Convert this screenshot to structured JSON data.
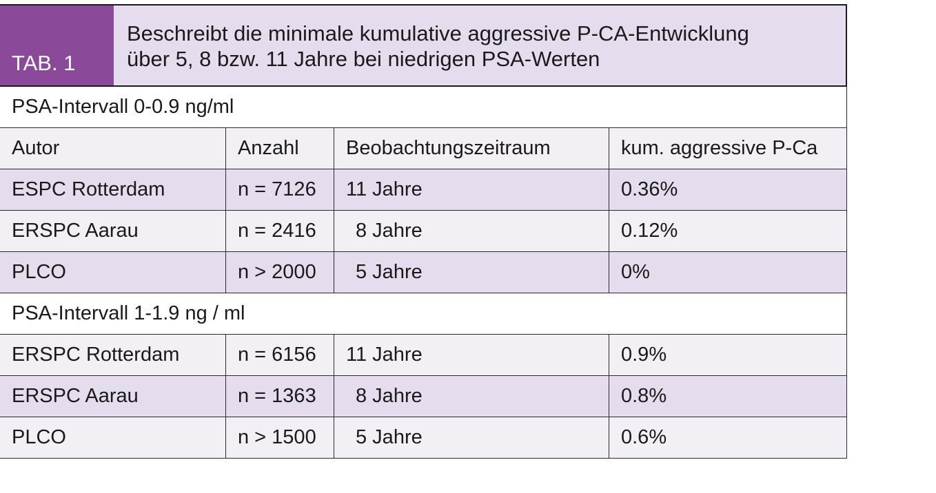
{
  "table": {
    "label": "TAB. 1",
    "title_lines": [
      "Beschreibt die minimale kumulative aggressive P-CA-Entwicklung",
      "über 5, 8 bzw. 11 Jahre bei niedrigen PSA-Werten"
    ],
    "columns": [
      "Autor",
      "Anzahl",
      "Beobachtungszeitraum",
      "kum. aggressive P-Ca"
    ],
    "sections": [
      {
        "label": "PSA-Intervall 0-0.9 ng/ml",
        "rows": [
          {
            "author": "ESPC Rotterdam",
            "count": "n = 7126",
            "period": "11 Jahre",
            "rate": "0.36%"
          },
          {
            "author": "ERSPC Aarau",
            "count": "n = 2416",
            "period": "8 Jahre",
            "rate": "0.12%"
          },
          {
            "author": "PLCO",
            "count": "n > 2000",
            "period": "5 Jahre",
            "rate": "0%"
          }
        ]
      },
      {
        "label": "PSA-Intervall 1-1.9 ng / ml",
        "rows": [
          {
            "author": "ERSPC Rotterdam",
            "count": "n = 6156",
            "period": "11 Jahre",
            "rate": "0.9%"
          },
          {
            "author": "ERSPC Aarau",
            "count": "n = 1363",
            "period": "8 Jahre",
            "rate": "0.8%"
          },
          {
            "author": "PLCO",
            "count": "n > 1500",
            "period": "5 Jahre",
            "rate": "0.6%"
          }
        ]
      }
    ]
  }
}
